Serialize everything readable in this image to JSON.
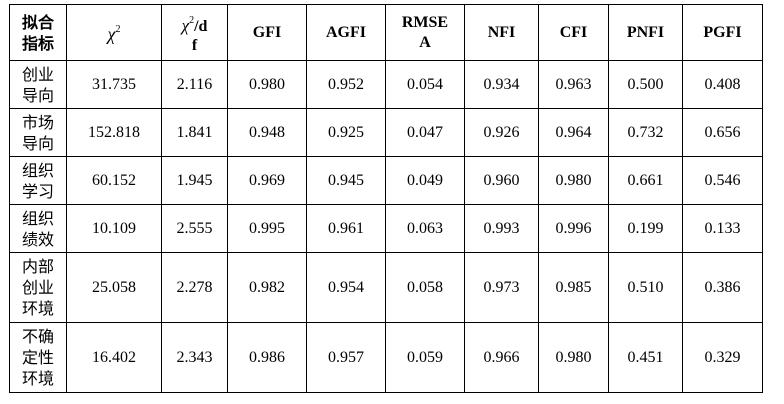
{
  "table": {
    "header_corner": [
      "拟合",
      "指标"
    ],
    "chi_symbol": "χ",
    "chi_sup": "2",
    "chidf_suffix_1": "/d",
    "chidf_suffix_2": "f",
    "columns": [
      "GFI",
      "AGFI",
      "NFI",
      "CFI",
      "PNFI",
      "PGFI"
    ],
    "rmsea": [
      "RMSE",
      "A"
    ],
    "rows": [
      {
        "label": [
          "创业",
          "导向"
        ],
        "chi2": "31.735",
        "chi2df": "2.116",
        "gfi": "0.980",
        "agfi": "0.952",
        "rmsea": "0.054",
        "nfi": "0.934",
        "cfi": "0.963",
        "pnfi": "0.500",
        "pgfi": "0.408"
      },
      {
        "label": [
          "市场",
          "导向"
        ],
        "chi2": "152.818",
        "chi2df": "1.841",
        "gfi": "0.948",
        "agfi": "0.925",
        "rmsea": "0.047",
        "nfi": "0.926",
        "cfi": "0.964",
        "pnfi": "0.732",
        "pgfi": "0.656"
      },
      {
        "label": [
          "组织",
          "学习"
        ],
        "chi2": "60.152",
        "chi2df": "1.945",
        "gfi": "0.969",
        "agfi": "0.945",
        "rmsea": "0.049",
        "nfi": "0.960",
        "cfi": "0.980",
        "pnfi": "0.661",
        "pgfi": "0.546"
      },
      {
        "label": [
          "组织",
          "绩效"
        ],
        "chi2": "10.109",
        "chi2df": "2.555",
        "gfi": "0.995",
        "agfi": "0.961",
        "rmsea": "0.063",
        "nfi": "0.993",
        "cfi": "0.996",
        "pnfi": "0.199",
        "pgfi": "0.133"
      },
      {
        "label": [
          "内部",
          "创业",
          "环境"
        ],
        "chi2": "25.058",
        "chi2df": "2.278",
        "gfi": "0.982",
        "agfi": "0.954",
        "rmsea": "0.058",
        "nfi": "0.973",
        "cfi": "0.985",
        "pnfi": "0.510",
        "pgfi": "0.386"
      },
      {
        "label": [
          "不确",
          "定性",
          "环境"
        ],
        "chi2": "16.402",
        "chi2df": "2.343",
        "gfi": "0.986",
        "agfi": "0.957",
        "rmsea": "0.059",
        "nfi": "0.966",
        "cfi": "0.980",
        "pnfi": "0.451",
        "pgfi": "0.329"
      }
    ]
  }
}
